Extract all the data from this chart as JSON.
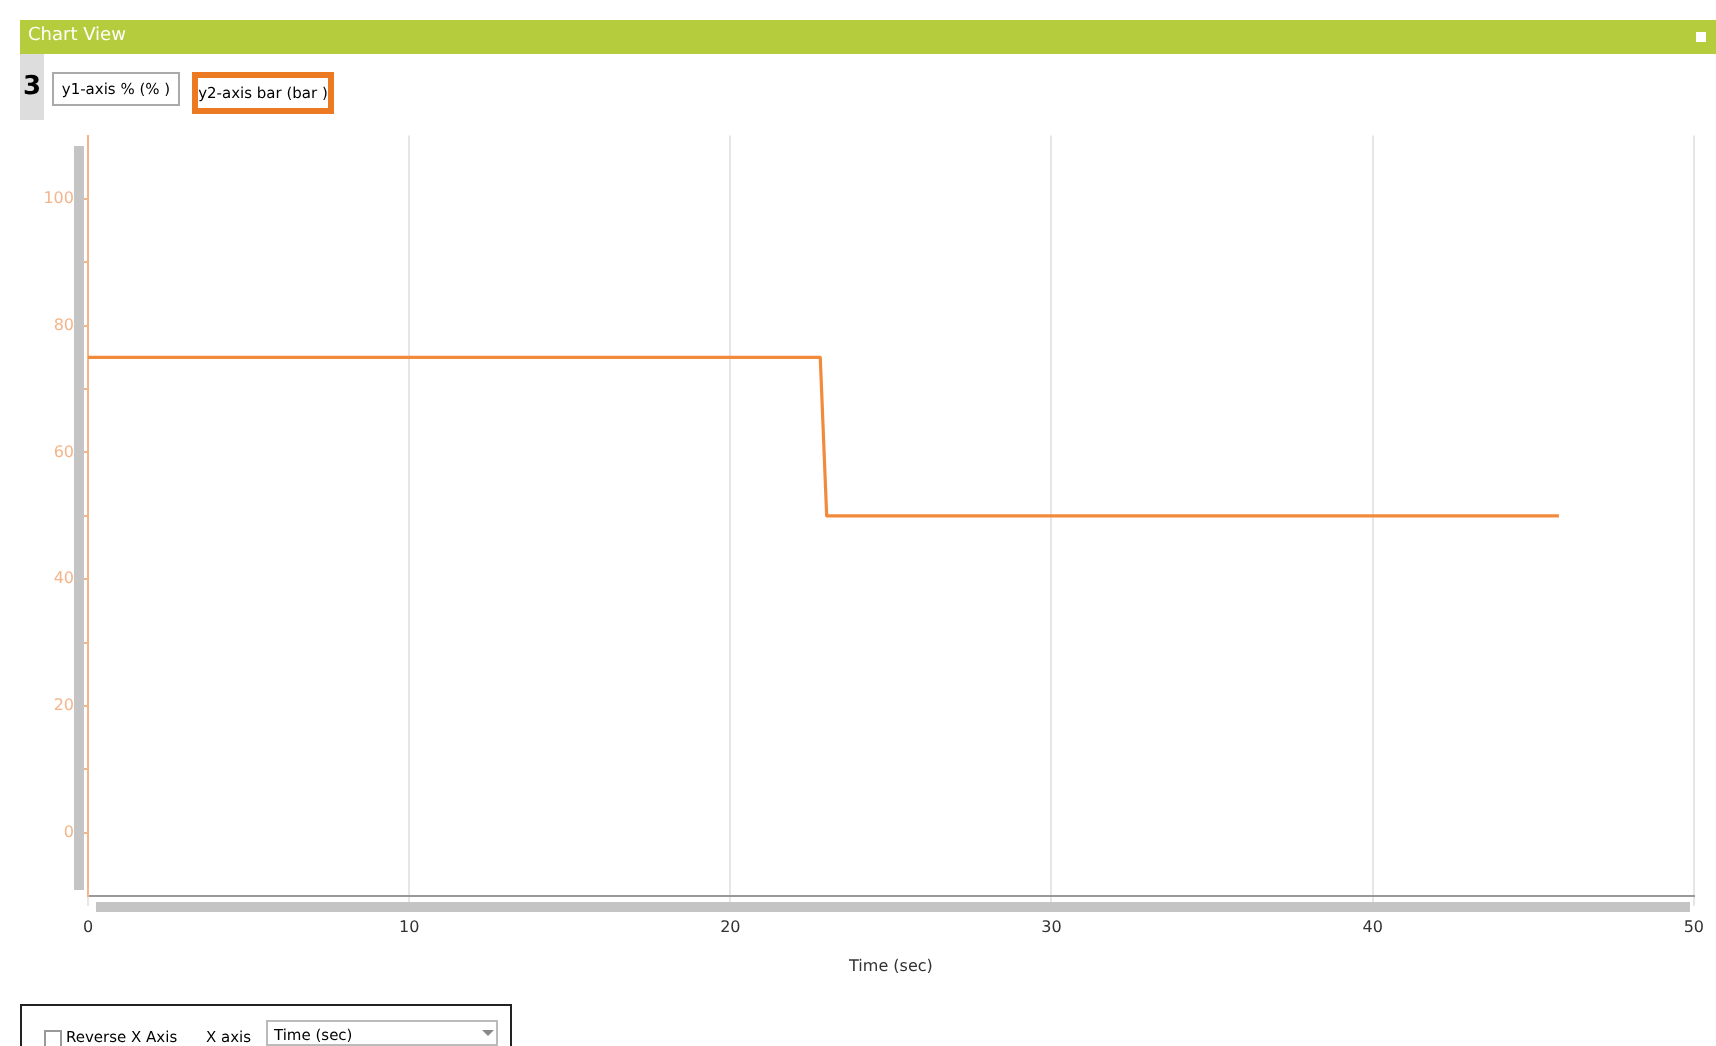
{
  "chart_data": {
    "type": "line",
    "xlabel": "Time (sec)",
    "annotations": [
      "Chart View",
      "3",
      "y1-axis % (% )",
      "y2-axis bar (bar )",
      "Reverse X Axis",
      "X axis",
      "Time (sec)"
    ],
    "x": [
      0,
      22.8,
      23.0,
      45.8
    ],
    "series": [
      {
        "color": "#f28a3c",
        "values": [
          75,
          75,
          50,
          50
        ]
      }
    ],
    "xlim": [
      0,
      50
    ],
    "xticks": [
      0,
      10,
      20,
      30,
      40,
      50
    ],
    "ylim": [
      -10,
      110
    ],
    "yticks": [
      0,
      {
        "value": 10,
        "label": null
      },
      20,
      {
        "value": 30,
        "label": null
      },
      40,
      {
        "value": 50,
        "label": null
      },
      60,
      {
        "value": 70,
        "label": null
      },
      80,
      {
        "value": 90,
        "label": null
      },
      100
    ],
    "grid": "x",
    "legend": false,
    "marker": "none",
    "line_style": "solid"
  }
}
